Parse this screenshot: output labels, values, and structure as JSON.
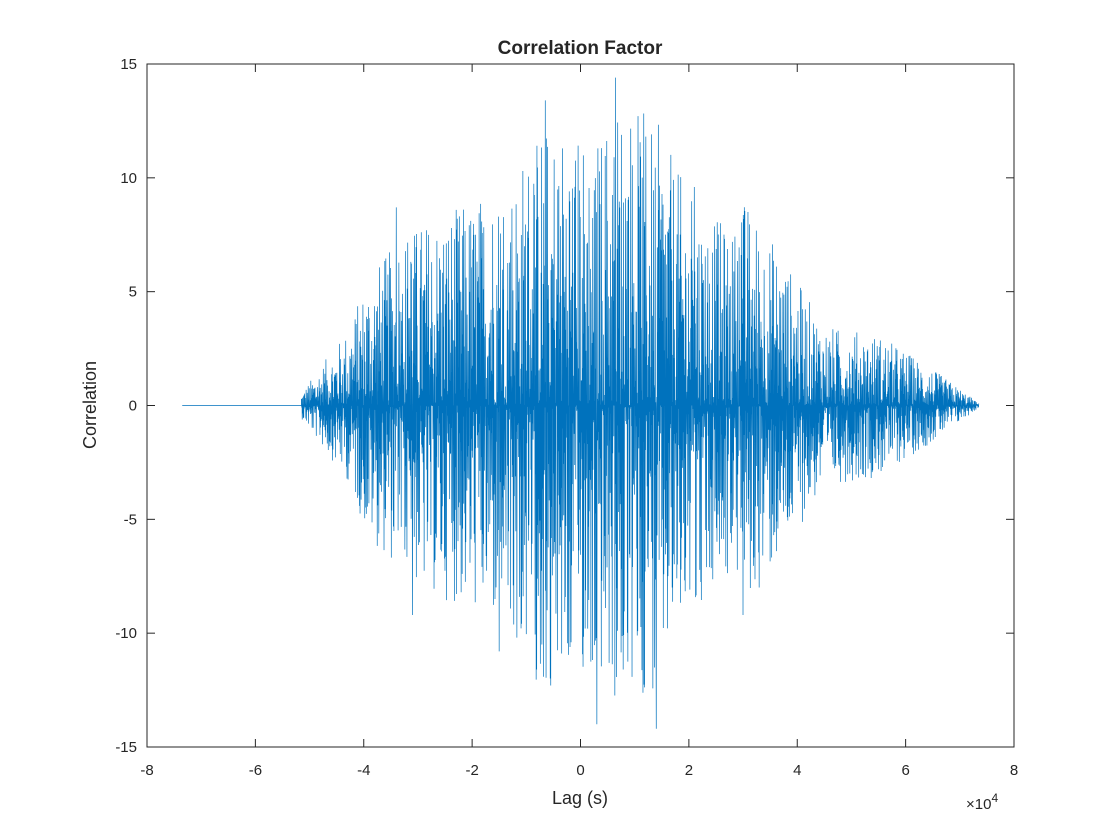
{
  "chart_data": {
    "type": "line",
    "title": "Correlation Factor",
    "xlabel": "Lag (s)",
    "ylabel": "Correlation",
    "x_exponent_base": "×10",
    "x_exponent_power": "4",
    "xlim": [
      -8,
      8
    ],
    "ylim": [
      -15,
      15
    ],
    "xticks": [
      -8,
      -6,
      -4,
      -2,
      0,
      2,
      4,
      6,
      8
    ],
    "yticks": [
      -15,
      -10,
      -5,
      0,
      5,
      10,
      15
    ],
    "xtick_labels": [
      "-8",
      "-6",
      "-4",
      "-2",
      "0",
      "2",
      "4",
      "6",
      "8"
    ],
    "ytick_labels": [
      "-15",
      "-10",
      "-5",
      "0",
      "5",
      "10",
      "15"
    ],
    "grid": false,
    "legend": "none",
    "series_color": "#0072BD",
    "x_units_note": "x values are in units of 10^4 seconds as printed on the axis",
    "flat_segment": {
      "x_start": -7.35,
      "x_end": -5.15,
      "y": 0
    },
    "x_end": 7.35,
    "envelope": [
      {
        "x": -5.15,
        "y": 0.6
      },
      {
        "x": -4.8,
        "y": 1.8
      },
      {
        "x": -4.3,
        "y": 3.5
      },
      {
        "x": -3.9,
        "y": 6.2
      },
      {
        "x": -3.0,
        "y": 8.5
      },
      {
        "x": -2.0,
        "y": 9.5
      },
      {
        "x": -1.2,
        "y": 11.0
      },
      {
        "x": -0.7,
        "y": 13.3
      },
      {
        "x": 0.3,
        "y": 12.5
      },
      {
        "x": 0.7,
        "y": 14.4
      },
      {
        "x": 1.4,
        "y": 13.2
      },
      {
        "x": 2.0,
        "y": 9.8
      },
      {
        "x": 2.8,
        "y": 8.0
      },
      {
        "x": 3.0,
        "y": 9.7
      },
      {
        "x": 3.6,
        "y": 7.5
      },
      {
        "x": 4.5,
        "y": 3.7
      },
      {
        "x": 5.5,
        "y": 3.3
      },
      {
        "x": 6.2,
        "y": 2.2
      },
      {
        "x": 7.0,
        "y": 0.8
      },
      {
        "x": 7.35,
        "y": 0.1
      }
    ],
    "peaks": [
      {
        "x": 0.65,
        "y": 14.4
      },
      {
        "x": -0.65,
        "y": 13.4
      },
      {
        "x": 1.4,
        "y": -14.2
      },
      {
        "x": 0.3,
        "y": -14.0
      },
      {
        "x": -0.55,
        "y": -12.3
      },
      {
        "x": 2.1,
        "y": 9.6
      },
      {
        "x": 3.0,
        "y": 9.6
      },
      {
        "x": -3.4,
        "y": 8.7
      },
      {
        "x": -3.1,
        "y": -9.2
      },
      {
        "x": 3.0,
        "y": -9.2
      },
      {
        "x": -1.5,
        "y": -10.8
      }
    ]
  }
}
